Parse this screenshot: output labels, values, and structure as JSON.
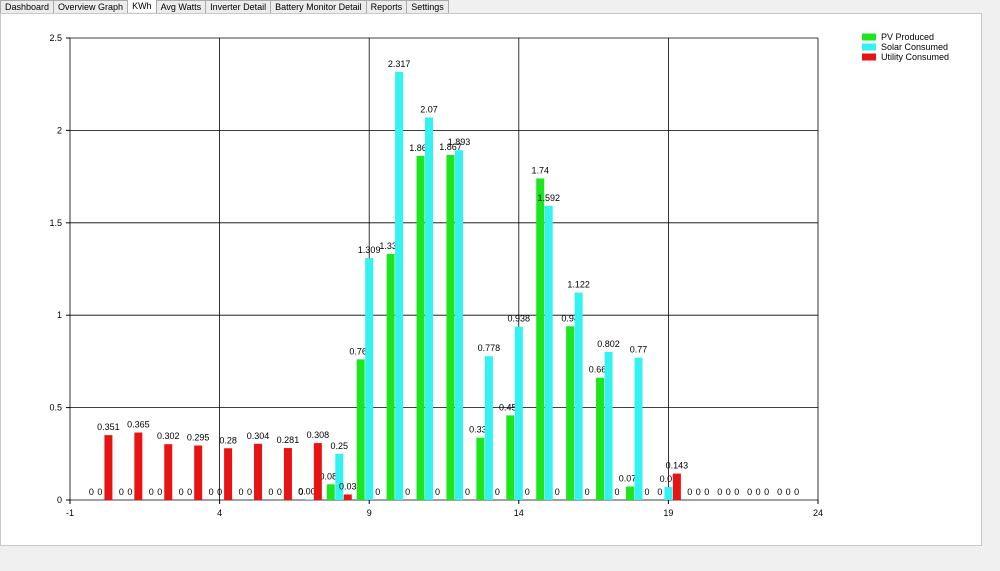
{
  "tabs": [
    "Dashboard",
    "Overview Graph",
    "KWh",
    "Avg Watts",
    "Inverter Detail",
    "Battery Monitor Detail",
    "Reports",
    "Settings"
  ],
  "active_tab": 2,
  "chart_data": {
    "type": "bar",
    "x": [
      0,
      1,
      2,
      3,
      4,
      5,
      6,
      7,
      8,
      9,
      10,
      11,
      12,
      13,
      14,
      15,
      16,
      17,
      18,
      19,
      20,
      21,
      22,
      23
    ],
    "series": [
      {
        "name": "PV Produced",
        "color": "#1ee61e",
        "values": [
          0,
          0,
          0,
          0,
          0,
          0,
          0,
          0,
          0.085,
          0.761,
          1.331,
          1.862,
          1.867,
          0.337,
          0.458,
          1.74,
          0.94,
          0.662,
          0.073,
          0,
          0,
          0,
          0,
          0
        ]
      },
      {
        "name": "Solar Consumed",
        "color": "#33f2f2",
        "values": [
          0,
          0,
          0,
          0,
          0,
          0,
          0,
          0.002,
          0.25,
          1.309,
          2.317,
          2.07,
          1.893,
          0.778,
          0.938,
          1.592,
          1.122,
          0.802,
          0.77,
          0.07,
          0,
          0,
          0,
          0
        ]
      },
      {
        "name": "Utility Consumed",
        "color": "#e81414",
        "values": [
          0.351,
          0.365,
          0.302,
          0.295,
          0.28,
          0.304,
          0.281,
          0.308,
          0.03,
          0,
          0,
          0,
          0,
          0,
          0,
          0,
          0,
          0,
          0,
          0.143,
          0,
          0,
          0,
          0
        ]
      }
    ],
    "xlim": [
      -1,
      24
    ],
    "xticks": [
      -1,
      4,
      9,
      14,
      19,
      24
    ],
    "ylim": [
      0,
      2.5
    ],
    "yticks": [
      0,
      0.5,
      1,
      1.5,
      2,
      2.5
    ],
    "grid": true,
    "legend": "top-right",
    "data_labels": true
  }
}
